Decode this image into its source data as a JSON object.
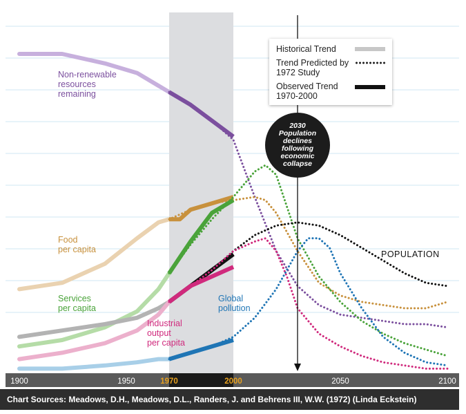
{
  "chart_data": {
    "type": "line",
    "title": "",
    "xlabel": "",
    "ylabel": "",
    "x_ticks": [
      1900,
      1950,
      1970,
      2000,
      2050,
      2100
    ],
    "xlim": [
      1900,
      2100
    ],
    "ylim": [
      0,
      100
    ],
    "grid": true,
    "shaded_period": {
      "from": 1970,
      "to": 2000
    },
    "marker_year": 2030,
    "legend": {
      "placement": "top-right",
      "historical": "Historical Trend",
      "predicted": "Trend Predicted by 1972 Study",
      "observed": "Observed Trend 1970-2000"
    },
    "series": [
      {
        "name": "Non-renewable resources remaining",
        "color": "#7b4f9e",
        "light_color": "#c7b0dd",
        "historical": [
          [
            1900,
            100
          ],
          [
            1920,
            100
          ],
          [
            1940,
            97
          ],
          [
            1955,
            94
          ],
          [
            1965,
            90
          ],
          [
            1970,
            88
          ]
        ],
        "observed": [
          [
            1970,
            88
          ],
          [
            1980,
            84
          ],
          [
            1990,
            79
          ],
          [
            2000,
            74
          ]
        ],
        "predicted": [
          [
            1970,
            88
          ],
          [
            1980,
            84
          ],
          [
            1990,
            79
          ],
          [
            2000,
            73
          ],
          [
            2010,
            55
          ],
          [
            2020,
            38
          ],
          [
            2030,
            27
          ],
          [
            2040,
            21
          ],
          [
            2050,
            18
          ],
          [
            2060,
            17
          ],
          [
            2070,
            16
          ],
          [
            2080,
            15
          ],
          [
            2090,
            15
          ],
          [
            2100,
            14
          ]
        ]
      },
      {
        "name": "Food per capita",
        "color": "#c8913d",
        "light_color": "#ead2b0",
        "historical": [
          [
            1900,
            26
          ],
          [
            1920,
            28
          ],
          [
            1940,
            34
          ],
          [
            1955,
            42
          ],
          [
            1965,
            47
          ],
          [
            1970,
            48
          ]
        ],
        "observed": [
          [
            1970,
            48
          ],
          [
            1975,
            48
          ],
          [
            1980,
            51
          ],
          [
            1990,
            53
          ],
          [
            2000,
            55
          ]
        ],
        "predicted": [
          [
            1970,
            48
          ],
          [
            1980,
            51
          ],
          [
            1990,
            53
          ],
          [
            2000,
            54
          ],
          [
            2010,
            55
          ],
          [
            2015,
            54
          ],
          [
            2020,
            50
          ],
          [
            2025,
            44
          ],
          [
            2030,
            38
          ],
          [
            2040,
            28
          ],
          [
            2050,
            24
          ],
          [
            2060,
            22
          ],
          [
            2070,
            21
          ],
          [
            2080,
            20
          ],
          [
            2090,
            20
          ],
          [
            2100,
            22
          ]
        ]
      },
      {
        "name": "Services per capita",
        "color": "#4aa33a",
        "light_color": "#b5dca7",
        "historical": [
          [
            1900,
            8
          ],
          [
            1920,
            10
          ],
          [
            1940,
            14
          ],
          [
            1955,
            19
          ],
          [
            1965,
            26
          ],
          [
            1970,
            31
          ]
        ],
        "observed": [
          [
            1970,
            31
          ],
          [
            1980,
            41
          ],
          [
            1990,
            50
          ],
          [
            2000,
            54
          ]
        ],
        "predicted": [
          [
            1970,
            31
          ],
          [
            1980,
            40
          ],
          [
            1990,
            48
          ],
          [
            2000,
            55
          ],
          [
            2010,
            63
          ],
          [
            2015,
            65
          ],
          [
            2020,
            62
          ],
          [
            2025,
            52
          ],
          [
            2030,
            42
          ],
          [
            2040,
            30
          ],
          [
            2050,
            22
          ],
          [
            2060,
            16
          ],
          [
            2070,
            12
          ],
          [
            2080,
            9
          ],
          [
            2090,
            7
          ],
          [
            2100,
            5
          ]
        ]
      },
      {
        "name": "POPULATION",
        "color": "#111111",
        "light_color": "#b3b3b3",
        "historical": [
          [
            1900,
            11
          ],
          [
            1920,
            13
          ],
          [
            1940,
            15
          ],
          [
            1955,
            17
          ],
          [
            1965,
            20
          ],
          [
            1970,
            22
          ]
        ],
        "observed": [
          [
            1970,
            22
          ],
          [
            1980,
            27
          ],
          [
            1990,
            32
          ],
          [
            2000,
            37
          ]
        ],
        "predicted": [
          [
            1970,
            22
          ],
          [
            1980,
            27
          ],
          [
            1990,
            32
          ],
          [
            2000,
            38
          ],
          [
            2010,
            43
          ],
          [
            2020,
            46
          ],
          [
            2030,
            47
          ],
          [
            2040,
            46
          ],
          [
            2050,
            43
          ],
          [
            2060,
            39
          ],
          [
            2070,
            35
          ],
          [
            2080,
            31
          ],
          [
            2090,
            28
          ],
          [
            2100,
            27
          ]
        ]
      },
      {
        "name": "Industrial output per capita",
        "color": "#d02a7d",
        "light_color": "#ecb0cc",
        "historical": [
          [
            1900,
            4
          ],
          [
            1920,
            6
          ],
          [
            1940,
            9
          ],
          [
            1955,
            13
          ],
          [
            1965,
            18
          ],
          [
            1970,
            22
          ]
        ],
        "observed": [
          [
            1970,
            22
          ],
          [
            1980,
            27
          ],
          [
            1990,
            30
          ],
          [
            2000,
            33
          ]
        ],
        "predicted": [
          [
            1970,
            22
          ],
          [
            1980,
            27
          ],
          [
            1990,
            32
          ],
          [
            2000,
            38
          ],
          [
            2010,
            41
          ],
          [
            2015,
            42
          ],
          [
            2020,
            38
          ],
          [
            2025,
            30
          ],
          [
            2030,
            20
          ],
          [
            2040,
            12
          ],
          [
            2050,
            8
          ],
          [
            2060,
            5
          ],
          [
            2070,
            3
          ],
          [
            2080,
            2
          ],
          [
            2090,
            1
          ],
          [
            2100,
            1
          ]
        ]
      },
      {
        "name": "Global pollution",
        "color": "#1f75b5",
        "light_color": "#a8cfe8",
        "historical": [
          [
            1900,
            1
          ],
          [
            1920,
            1
          ],
          [
            1940,
            2
          ],
          [
            1955,
            3
          ],
          [
            1965,
            4
          ],
          [
            1970,
            4
          ]
        ],
        "observed": [
          [
            1970,
            4
          ],
          [
            1980,
            6
          ],
          [
            1990,
            8
          ],
          [
            2000,
            10
          ]
        ],
        "predicted": [
          [
            1970,
            4
          ],
          [
            1980,
            6
          ],
          [
            1990,
            8
          ],
          [
            2000,
            11
          ],
          [
            2010,
            17
          ],
          [
            2020,
            26
          ],
          [
            2030,
            38
          ],
          [
            2035,
            42
          ],
          [
            2040,
            42
          ],
          [
            2045,
            39
          ],
          [
            2050,
            31
          ],
          [
            2060,
            20
          ],
          [
            2070,
            11
          ],
          [
            2080,
            6
          ],
          [
            2090,
            3
          ],
          [
            2100,
            2
          ]
        ]
      }
    ]
  },
  "labels": {
    "nonrenewable": [
      "Non-renewable",
      "resources",
      "remaining"
    ],
    "food": [
      "Food",
      "per capita"
    ],
    "services": [
      "Services",
      "per capita"
    ],
    "industrial": [
      "Industrial",
      "output",
      "per capita"
    ],
    "pollution": [
      "Global",
      "pollution"
    ],
    "population": "POPULATION"
  },
  "callout": "2030 Population declines following economic collapse",
  "source": "Chart Sources: Meadows, D.H., Meadows, D.L., Randers, J. and Behrens III, W.W. (1972) (Linda Eckstein)",
  "colors": {
    "highlight_years": "#e8a11f",
    "axis_bar": "#5a5a5a",
    "period_bar": "#1a1a1a",
    "shade": "#dcdde0",
    "grid": "#cfe7f3"
  }
}
